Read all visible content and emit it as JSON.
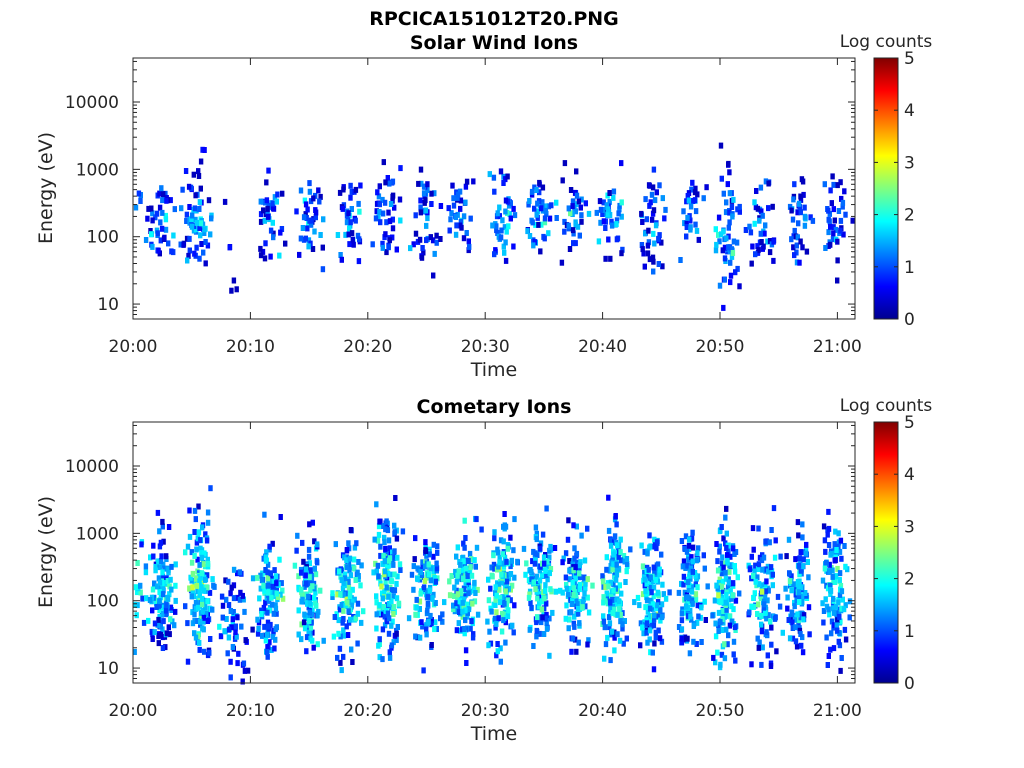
{
  "chart_data": [
    {
      "type": "heatmap",
      "title": "RPCICA151012T20.PNG",
      "subtitle": "Solar Wind Ions",
      "xlabel": "Time",
      "ylabel": "Energy (eV)",
      "x_tick_labels": [
        "20:00",
        "20:10",
        "20:20",
        "20:30",
        "20:40",
        "20:50",
        "21:00"
      ],
      "x_range_minutes": [
        0,
        61.5
      ],
      "y_scale": "log",
      "y_range": [
        6,
        45000
      ],
      "y_tick_labels": [
        "10",
        "100",
        "1000",
        "10000"
      ],
      "y_tick_values": [
        10,
        100,
        1000,
        10000
      ],
      "colorbar": {
        "label": "Log counts",
        "range": [
          0,
          5
        ],
        "ticks": [
          "0",
          "1",
          "2",
          "3",
          "4",
          "5"
        ],
        "colormap": "jet"
      },
      "grid": false,
      "bursts": [
        {
          "t": 0.1,
          "e": 200,
          "spread": 0.45,
          "level": 1.0,
          "n": 14
        },
        {
          "t": 2.3,
          "e": 140,
          "spread": 0.35,
          "level": 1.1,
          "n": 45
        },
        {
          "t": 5.5,
          "e": 200,
          "spread": 0.4,
          "level": 1.2,
          "n": 70
        },
        {
          "t": 8.5,
          "e": 90,
          "spread": 0.3,
          "level": 0.8,
          "n": 6
        },
        {
          "t": 11.7,
          "e": 170,
          "spread": 0.35,
          "level": 1.0,
          "n": 40
        },
        {
          "t": 15.0,
          "e": 170,
          "spread": 0.35,
          "level": 1.0,
          "n": 40
        },
        {
          "t": 18.5,
          "e": 160,
          "spread": 0.35,
          "level": 1.0,
          "n": 40
        },
        {
          "t": 21.7,
          "e": 200,
          "spread": 0.35,
          "level": 1.0,
          "n": 45
        },
        {
          "t": 25.0,
          "e": 200,
          "spread": 0.35,
          "level": 1.0,
          "n": 45
        },
        {
          "t": 28.0,
          "e": 230,
          "spread": 0.3,
          "level": 1.1,
          "n": 35
        },
        {
          "t": 31.5,
          "e": 200,
          "spread": 0.4,
          "level": 1.3,
          "n": 45
        },
        {
          "t": 34.7,
          "e": 250,
          "spread": 0.35,
          "level": 1.2,
          "n": 45
        },
        {
          "t": 37.5,
          "e": 200,
          "spread": 0.35,
          "level": 1.1,
          "n": 40
        },
        {
          "t": 40.7,
          "e": 250,
          "spread": 0.35,
          "level": 1.2,
          "n": 45
        },
        {
          "t": 44.3,
          "e": 180,
          "spread": 0.35,
          "level": 1.0,
          "n": 45
        },
        {
          "t": 47.5,
          "e": 250,
          "spread": 0.3,
          "level": 1.0,
          "n": 30
        },
        {
          "t": 50.6,
          "e": 120,
          "spread": 0.45,
          "level": 1.3,
          "n": 60
        },
        {
          "t": 53.7,
          "e": 160,
          "spread": 0.35,
          "level": 1.0,
          "n": 40
        },
        {
          "t": 56.7,
          "e": 200,
          "spread": 0.35,
          "level": 1.0,
          "n": 40
        },
        {
          "t": 59.8,
          "e": 170,
          "spread": 0.35,
          "level": 1.0,
          "n": 40
        }
      ]
    },
    {
      "type": "heatmap",
      "title": "Cometary Ions",
      "xlabel": "Time",
      "ylabel": "Energy (eV)",
      "x_tick_labels": [
        "20:00",
        "20:10",
        "20:20",
        "20:30",
        "20:40",
        "20:50",
        "21:00"
      ],
      "x_range_minutes": [
        0,
        61.5
      ],
      "y_scale": "log",
      "y_range": [
        6,
        45000
      ],
      "y_tick_labels": [
        "10",
        "100",
        "1000",
        "10000"
      ],
      "y_tick_values": [
        10,
        100,
        1000,
        10000
      ],
      "colorbar": {
        "label": "Log counts",
        "range": [
          0,
          5
        ],
        "ticks": [
          "0",
          "1",
          "2",
          "3",
          "4",
          "5"
        ],
        "colormap": "jet"
      },
      "grid": false,
      "bursts": [
        {
          "t": 0.2,
          "e": 200,
          "spread": 0.5,
          "level": 1.8,
          "n": 30
        },
        {
          "t": 2.5,
          "e": 130,
          "spread": 0.45,
          "level": 1.6,
          "n": 120
        },
        {
          "t": 5.7,
          "e": 170,
          "spread": 0.5,
          "level": 1.9,
          "n": 150
        },
        {
          "t": 8.7,
          "e": 50,
          "spread": 0.4,
          "level": 1.2,
          "n": 60
        },
        {
          "t": 11.7,
          "e": 120,
          "spread": 0.45,
          "level": 1.6,
          "n": 120
        },
        {
          "t": 15.0,
          "e": 130,
          "spread": 0.45,
          "level": 1.7,
          "n": 120
        },
        {
          "t": 18.3,
          "e": 140,
          "spread": 0.45,
          "level": 1.7,
          "n": 120
        },
        {
          "t": 21.7,
          "e": 180,
          "spread": 0.5,
          "level": 1.9,
          "n": 140
        },
        {
          "t": 25.0,
          "e": 150,
          "spread": 0.45,
          "level": 1.7,
          "n": 120
        },
        {
          "t": 28.3,
          "e": 180,
          "spread": 0.45,
          "level": 1.8,
          "n": 130
        },
        {
          "t": 31.5,
          "e": 150,
          "spread": 0.5,
          "level": 1.8,
          "n": 130
        },
        {
          "t": 34.7,
          "e": 170,
          "spread": 0.45,
          "level": 1.8,
          "n": 130
        },
        {
          "t": 37.8,
          "e": 150,
          "spread": 0.45,
          "level": 1.7,
          "n": 120
        },
        {
          "t": 41.0,
          "e": 180,
          "spread": 0.45,
          "level": 1.8,
          "n": 130
        },
        {
          "t": 44.2,
          "e": 130,
          "spread": 0.45,
          "level": 1.7,
          "n": 130
        },
        {
          "t": 47.5,
          "e": 150,
          "spread": 0.45,
          "level": 1.6,
          "n": 120
        },
        {
          "t": 50.5,
          "e": 130,
          "spread": 0.5,
          "level": 1.8,
          "n": 130
        },
        {
          "t": 53.7,
          "e": 120,
          "spread": 0.45,
          "level": 1.6,
          "n": 110
        },
        {
          "t": 56.7,
          "e": 130,
          "spread": 0.45,
          "level": 1.6,
          "n": 110
        },
        {
          "t": 59.8,
          "e": 160,
          "spread": 0.45,
          "level": 1.7,
          "n": 120
        }
      ]
    }
  ]
}
